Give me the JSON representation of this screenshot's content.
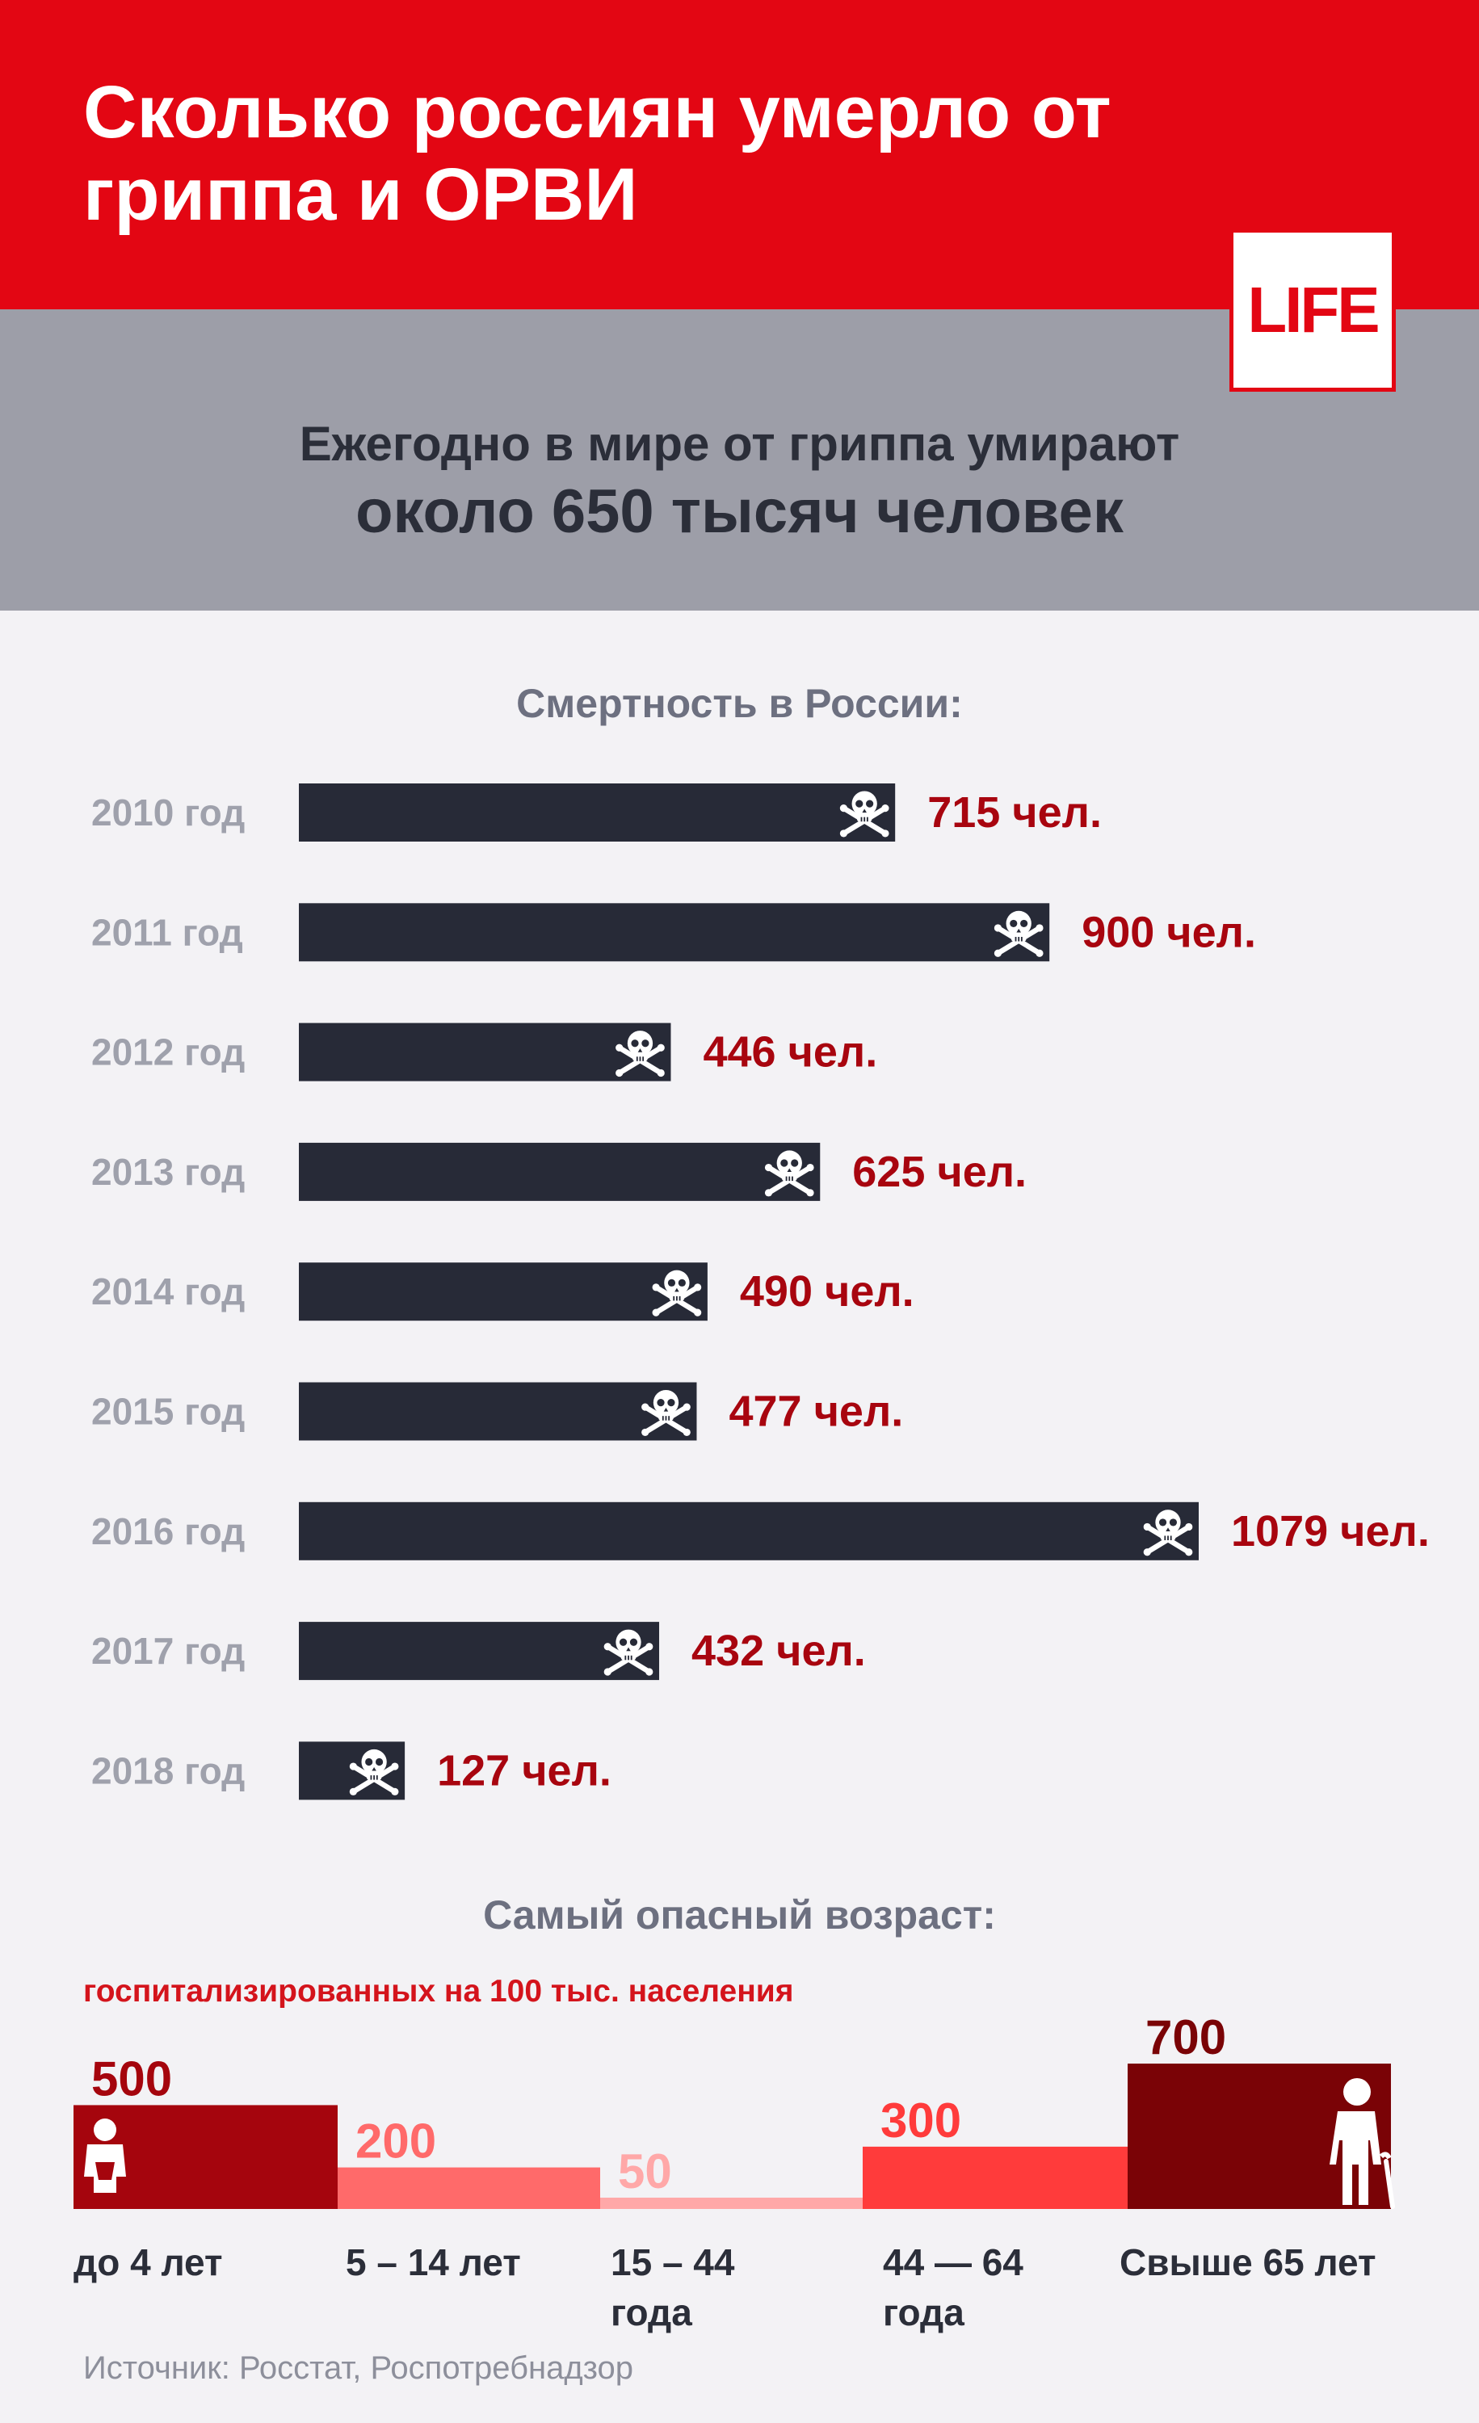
{
  "header": {
    "title": "Сколько россиян умерло от гриппа и ОРВИ",
    "logo": "LIFE"
  },
  "fact": {
    "line1": "Ежегодно в мире от гриппа умирают",
    "line2": "около 650 тысяч человек"
  },
  "deaths_section": {
    "title": "Смертность в России:"
  },
  "age_section": {
    "title": "Самый опасный возраст:",
    "caption": "госпитализированных на 100 тыс. населения"
  },
  "source": "Источник: Росстат, Роспотребнадзор",
  "colors": {
    "brand_red": "#e30613",
    "bar_dark": "#272a37",
    "value_red": "#a8050f",
    "year_gray": "#9fa1ac",
    "age_colors": [
      "#a5050d",
      "#ff6a6a",
      "#ffa8a8",
      "#ff3b3b",
      "#7a0306"
    ],
    "age_value_colors": [
      "#a5050d",
      "#ff6a6a",
      "#ffa8a8",
      "#ff3b3b",
      "#7a0306"
    ]
  },
  "icons": {
    "bar_marker": "skull-crossbones-icon",
    "age_first": "baby-icon",
    "age_last": "elderly-person-icon"
  },
  "chart_data": [
    {
      "type": "bar",
      "orientation": "horizontal",
      "title": "Смертность в России:",
      "categories": [
        "2010 год",
        "2011 год",
        "2012 год",
        "2013 год",
        "2014 год",
        "2015 год",
        "2016 год",
        "2017 год",
        "2018 год"
      ],
      "values": [
        715,
        900,
        446,
        625,
        490,
        477,
        1079,
        432,
        127
      ],
      "value_labels": [
        "715 чел.",
        "900 чел.",
        "446 чел.",
        "625 чел.",
        "490 чел.",
        "477 чел.",
        "1079 чел.",
        "432 чел.",
        "127 чел."
      ],
      "xlim": [
        0,
        1079
      ],
      "grid": false
    },
    {
      "type": "bar",
      "title": "Самый опасный возраст:",
      "subtitle": "госпитализированных на 100 тыс. населения",
      "categories": [
        "до 4 лет",
        "5 – 14 лет",
        "15 – 44\nгода",
        "44 — 64\nгода",
        "Свыше 65 лет"
      ],
      "values": [
        500,
        200,
        50,
        300,
        700
      ],
      "value_labels": [
        "500",
        "200",
        "50",
        "300",
        "700"
      ],
      "ylim": [
        0,
        700
      ],
      "grid": false
    }
  ]
}
